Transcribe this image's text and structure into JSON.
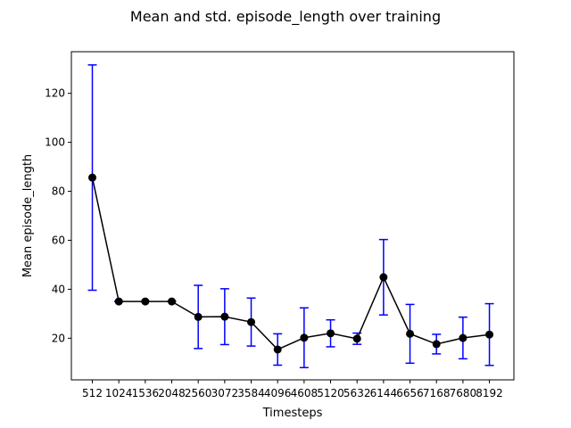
{
  "chart_data": {
    "type": "line",
    "title": "Mean and std. episode_length over training",
    "xlabel": "Timesteps",
    "ylabel": "Mean episode_length",
    "categories": [
      "512",
      "1024",
      "1536",
      "2048",
      "2560",
      "3072",
      "3584",
      "4096",
      "4608",
      "5120",
      "5632",
      "6144",
      "6656",
      "7168",
      "7680",
      "8192"
    ],
    "ylim": [
      3,
      137
    ],
    "yticks": [
      20,
      40,
      60,
      80,
      100,
      120
    ],
    "grid": false,
    "legend": "none",
    "series": [
      {
        "values": [
          85.6,
          35.0,
          35.0,
          35.0,
          28.7,
          28.8,
          26.6,
          15.4,
          20.2,
          22.0,
          19.8,
          44.9,
          21.8,
          17.6,
          20.1,
          21.5
        ],
        "std": [
          46.0,
          0.0,
          0.0,
          0.0,
          12.9,
          11.4,
          9.8,
          6.4,
          12.2,
          5.5,
          2.3,
          15.4,
          12.0,
          4.0,
          8.5,
          12.6
        ]
      }
    ],
    "colors": {
      "line": "#000000",
      "marker": "#000000",
      "errorbar": "#0000ff"
    }
  }
}
